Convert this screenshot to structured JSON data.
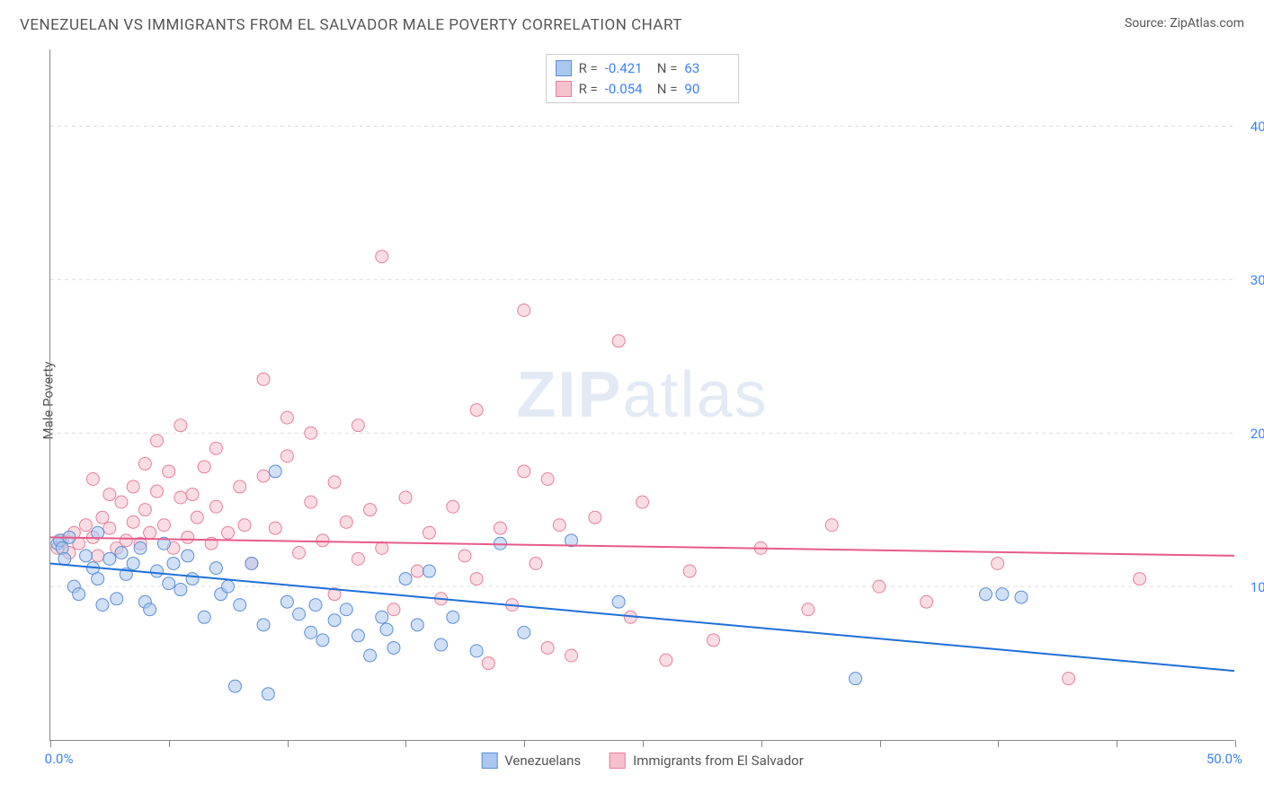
{
  "title": "VENEZUELAN VS IMMIGRANTS FROM EL SALVADOR MALE POVERTY CORRELATION CHART",
  "source": "Source: ZipAtlas.com",
  "ylabel": "Male Poverty",
  "watermark_a": "ZIP",
  "watermark_b": "atlas",
  "chart": {
    "type": "scatter",
    "xlim": [
      0,
      50
    ],
    "ylim": [
      0,
      45
    ],
    "xtick_positions": [
      0,
      5,
      10,
      15,
      20,
      25,
      30,
      35,
      40,
      45,
      50
    ],
    "xtick_labels": {
      "0": "0.0%",
      "50": "50.0%"
    },
    "ytick_positions": [
      10,
      20,
      30,
      40
    ],
    "ytick_labels": [
      "10.0%",
      "20.0%",
      "30.0%",
      "40.0%"
    ],
    "grid_color": "#dddddd",
    "axis_color": "#888888",
    "background_color": "#ffffff",
    "marker_radius": 7,
    "marker_opacity": 0.55,
    "line_width": 2,
    "series": [
      {
        "name": "Venezuelans",
        "fill_color": "#a9c7ef",
        "stroke_color": "#5b8fd6",
        "line_color": "#1e6fd9",
        "R": "-0.421",
        "N": "63",
        "trend": {
          "y_at_x0": 11.5,
          "y_at_x50": 4.5
        },
        "points": [
          [
            0.3,
            12.8
          ],
          [
            0.4,
            13.0
          ],
          [
            0.5,
            12.5
          ],
          [
            0.6,
            11.8
          ],
          [
            0.8,
            13.2
          ],
          [
            1.0,
            10.0
          ],
          [
            1.2,
            9.5
          ],
          [
            1.5,
            12.0
          ],
          [
            1.8,
            11.2
          ],
          [
            2.0,
            10.5
          ],
          [
            2.0,
            13.5
          ],
          [
            2.2,
            8.8
          ],
          [
            2.5,
            11.8
          ],
          [
            2.8,
            9.2
          ],
          [
            3.0,
            12.2
          ],
          [
            3.2,
            10.8
          ],
          [
            3.5,
            11.5
          ],
          [
            3.8,
            12.5
          ],
          [
            4.0,
            9.0
          ],
          [
            4.2,
            8.5
          ],
          [
            4.5,
            11.0
          ],
          [
            4.8,
            12.8
          ],
          [
            5.0,
            10.2
          ],
          [
            5.2,
            11.5
          ],
          [
            5.5,
            9.8
          ],
          [
            5.8,
            12.0
          ],
          [
            6.0,
            10.5
          ],
          [
            6.5,
            8.0
          ],
          [
            7.0,
            11.2
          ],
          [
            7.2,
            9.5
          ],
          [
            7.5,
            10.0
          ],
          [
            7.8,
            3.5
          ],
          [
            8.0,
            8.8
          ],
          [
            8.5,
            11.5
          ],
          [
            9.0,
            7.5
          ],
          [
            9.2,
            3.0
          ],
          [
            9.5,
            17.5
          ],
          [
            10.0,
            9.0
          ],
          [
            10.5,
            8.2
          ],
          [
            11.0,
            7.0
          ],
          [
            11.2,
            8.8
          ],
          [
            11.5,
            6.5
          ],
          [
            12.0,
            7.8
          ],
          [
            12.5,
            8.5
          ],
          [
            13.0,
            6.8
          ],
          [
            13.5,
            5.5
          ],
          [
            14.0,
            8.0
          ],
          [
            14.2,
            7.2
          ],
          [
            14.5,
            6.0
          ],
          [
            15.0,
            10.5
          ],
          [
            15.5,
            7.5
          ],
          [
            16.0,
            11.0
          ],
          [
            16.5,
            6.2
          ],
          [
            17.0,
            8.0
          ],
          [
            18.0,
            5.8
          ],
          [
            19.0,
            12.8
          ],
          [
            20.0,
            7.0
          ],
          [
            22.0,
            13.0
          ],
          [
            24.0,
            9.0
          ],
          [
            34.0,
            4.0
          ],
          [
            39.5,
            9.5
          ],
          [
            40.2,
            9.5
          ],
          [
            41.0,
            9.3
          ]
        ]
      },
      {
        "name": "Immigrants from El Salvador",
        "fill_color": "#f5c1cd",
        "stroke_color": "#e6809a",
        "line_color": "#e75a8a",
        "R": "-0.054",
        "N": "90",
        "trend": {
          "y_at_x0": 13.2,
          "y_at_x50": 12.0
        },
        "points": [
          [
            0.3,
            12.5
          ],
          [
            0.5,
            13.0
          ],
          [
            0.8,
            12.2
          ],
          [
            1.0,
            13.5
          ],
          [
            1.2,
            12.8
          ],
          [
            1.5,
            14.0
          ],
          [
            1.8,
            13.2
          ],
          [
            1.8,
            17.0
          ],
          [
            2.0,
            12.0
          ],
          [
            2.2,
            14.5
          ],
          [
            2.5,
            13.8
          ],
          [
            2.5,
            16.0
          ],
          [
            2.8,
            12.5
          ],
          [
            3.0,
            15.5
          ],
          [
            3.2,
            13.0
          ],
          [
            3.5,
            14.2
          ],
          [
            3.5,
            16.5
          ],
          [
            3.8,
            12.8
          ],
          [
            4.0,
            15.0
          ],
          [
            4.0,
            18.0
          ],
          [
            4.2,
            13.5
          ],
          [
            4.5,
            16.2
          ],
          [
            4.5,
            19.5
          ],
          [
            4.8,
            14.0
          ],
          [
            5.0,
            17.5
          ],
          [
            5.2,
            12.5
          ],
          [
            5.5,
            15.8
          ],
          [
            5.5,
            20.5
          ],
          [
            5.8,
            13.2
          ],
          [
            6.0,
            16.0
          ],
          [
            6.2,
            14.5
          ],
          [
            6.5,
            17.8
          ],
          [
            6.8,
            12.8
          ],
          [
            7.0,
            15.2
          ],
          [
            7.0,
            19.0
          ],
          [
            7.5,
            13.5
          ],
          [
            8.0,
            16.5
          ],
          [
            8.2,
            14.0
          ],
          [
            8.5,
            11.5
          ],
          [
            9.0,
            23.5
          ],
          [
            9.0,
            17.2
          ],
          [
            9.5,
            13.8
          ],
          [
            10.0,
            18.5
          ],
          [
            10.0,
            21.0
          ],
          [
            10.5,
            12.2
          ],
          [
            11.0,
            15.5
          ],
          [
            11.0,
            20.0
          ],
          [
            11.5,
            13.0
          ],
          [
            12.0,
            16.8
          ],
          [
            12.0,
            9.5
          ],
          [
            12.5,
            14.2
          ],
          [
            13.0,
            11.8
          ],
          [
            13.0,
            20.5
          ],
          [
            13.5,
            15.0
          ],
          [
            14.0,
            31.5
          ],
          [
            14.0,
            12.5
          ],
          [
            14.5,
            8.5
          ],
          [
            15.0,
            15.8
          ],
          [
            15.5,
            11.0
          ],
          [
            16.0,
            13.5
          ],
          [
            16.5,
            9.2
          ],
          [
            17.0,
            15.2
          ],
          [
            17.5,
            12.0
          ],
          [
            18.0,
            10.5
          ],
          [
            18.0,
            21.5
          ],
          [
            18.5,
            5.0
          ],
          [
            19.0,
            13.8
          ],
          [
            19.5,
            8.8
          ],
          [
            20.0,
            17.5
          ],
          [
            20.0,
            28.0
          ],
          [
            20.5,
            11.5
          ],
          [
            21.0,
            6.0
          ],
          [
            21.0,
            17.0
          ],
          [
            21.5,
            14.0
          ],
          [
            22.0,
            5.5
          ],
          [
            23.0,
            14.5
          ],
          [
            24.0,
            26.0
          ],
          [
            24.5,
            8.0
          ],
          [
            25.0,
            15.5
          ],
          [
            26.0,
            5.2
          ],
          [
            27.0,
            11.0
          ],
          [
            28.0,
            6.5
          ],
          [
            30.0,
            12.5
          ],
          [
            32.0,
            8.5
          ],
          [
            33.0,
            14.0
          ],
          [
            35.0,
            10.0
          ],
          [
            37.0,
            9.0
          ],
          [
            40.0,
            11.5
          ],
          [
            43.0,
            4.0
          ],
          [
            46.0,
            10.5
          ]
        ]
      }
    ]
  },
  "legend": {
    "series1": "Venezuelans",
    "series2": "Immigrants from El Salvador"
  }
}
